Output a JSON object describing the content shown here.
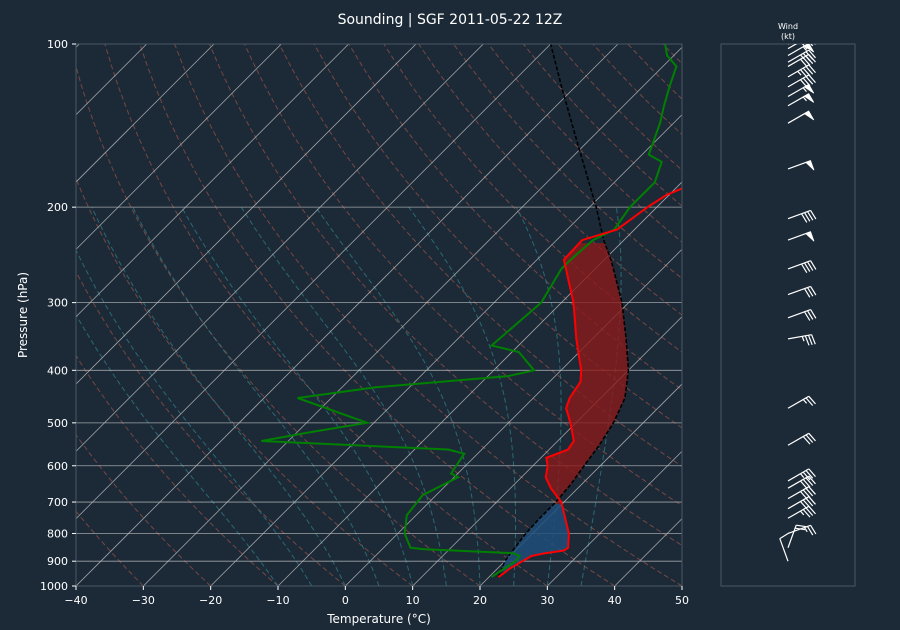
{
  "chart_data": {
    "type": "line",
    "title": "Sounding | SGF 2011-05-22 12Z",
    "xlabel": "Temperature (°C)",
    "ylabel": "Pressure (hPa)",
    "xlim": [
      -40,
      50
    ],
    "ylim": [
      1000,
      100
    ],
    "y_scale": "log",
    "skew": "skew-T",
    "x_ticks": [
      -40,
      -30,
      -20,
      -10,
      0,
      10,
      20,
      30,
      40,
      50
    ],
    "y_ticks": [
      100,
      200,
      300,
      400,
      500,
      600,
      700,
      800,
      900,
      1000
    ],
    "grid": true,
    "colors": {
      "background": "#1c2a38",
      "temperature": "#ff0000",
      "dewpoint": "#008000",
      "parcel": "#000000",
      "cape": "#8b1a1a",
      "cin": "#1f4e79",
      "dry_adiabat": "#b45a4a",
      "moist_adiabat": "#2f7f86",
      "isotherm": "#c0c0c0",
      "barb": "#ffffff"
    },
    "series": [
      {
        "name": "",
        "role": "temperature",
        "points": [
          {
            "p": 963,
            "t": 21.4
          },
          {
            "p": 950,
            "t": 21.6
          },
          {
            "p": 930,
            "t": 21.8
          },
          {
            "p": 900,
            "t": 22.6
          },
          {
            "p": 880,
            "t": 23.2
          },
          {
            "p": 870,
            "t": 24.8
          },
          {
            "p": 860,
            "t": 27.2
          },
          {
            "p": 850,
            "t": 27.4
          },
          {
            "p": 800,
            "t": 25.4
          },
          {
            "p": 750,
            "t": 22.6
          },
          {
            "p": 700,
            "t": 19.6
          },
          {
            "p": 660,
            "t": 16.0
          },
          {
            "p": 630,
            "t": 13.6
          },
          {
            "p": 600,
            "t": 12.2
          },
          {
            "p": 580,
            "t": 10.8
          },
          {
            "p": 560,
            "t": 12.8
          },
          {
            "p": 540,
            "t": 12.4
          },
          {
            "p": 500,
            "t": 9.2
          },
          {
            "p": 470,
            "t": 6.4
          },
          {
            "p": 450,
            "t": 5.4
          },
          {
            "p": 420,
            "t": 4.6
          },
          {
            "p": 400,
            "t": 3.0
          },
          {
            "p": 350,
            "t": -2.4
          },
          {
            "p": 300,
            "t": -8.2
          },
          {
            "p": 250,
            "t": -16.0
          },
          {
            "p": 230,
            "t": -16.2
          },
          {
            "p": 220,
            "t": -12.6
          },
          {
            "p": 200,
            "t": -11.4
          },
          {
            "p": 190,
            "t": -10.4
          },
          {
            "p": 180,
            "t": -7.8
          },
          {
            "p": 165,
            "t": -5.6
          },
          {
            "p": 155,
            "t": -6.2
          },
          {
            "p": 140,
            "t": -7.4
          },
          {
            "p": 130,
            "t": -10.0
          },
          {
            "p": 115,
            "t": -10.0
          },
          {
            "p": 105,
            "t": -11.0
          },
          {
            "p": 100,
            "t": -10.2
          }
        ]
      },
      {
        "name": "",
        "role": "dewpoint",
        "points": [
          {
            "p": 963,
            "t": 20.4
          },
          {
            "p": 950,
            "t": 20.6
          },
          {
            "p": 930,
            "t": 21.0
          },
          {
            "p": 900,
            "t": 21.6
          },
          {
            "p": 880,
            "t": 21.4
          },
          {
            "p": 870,
            "t": 20.0
          },
          {
            "p": 855,
            "t": 6.0
          },
          {
            "p": 850,
            "t": 4.0
          },
          {
            "p": 800,
            "t": 1.0
          },
          {
            "p": 740,
            "t": -1.4
          },
          {
            "p": 720,
            "t": -1.6
          },
          {
            "p": 680,
            "t": -2.0
          },
          {
            "p": 630,
            "t": 0.6
          },
          {
            "p": 620,
            "t": -1.0
          },
          {
            "p": 570,
            "t": -2.0
          },
          {
            "p": 560,
            "t": -5.0
          },
          {
            "p": 540,
            "t": -34.0
          },
          {
            "p": 520,
            "t": -28.0
          },
          {
            "p": 500,
            "t": -21.0
          },
          {
            "p": 450,
            "t": -35.0
          },
          {
            "p": 430,
            "t": -25.0
          },
          {
            "p": 410,
            "t": -7.0
          },
          {
            "p": 400,
            "t": -4.0
          },
          {
            "p": 370,
            "t": -9.0
          },
          {
            "p": 360,
            "t": -14.0
          },
          {
            "p": 300,
            "t": -13.0
          },
          {
            "p": 260,
            "t": -15.0
          },
          {
            "p": 250,
            "t": -15.0
          },
          {
            "p": 230,
            "t": -14.6
          },
          {
            "p": 220,
            "t": -13.0
          },
          {
            "p": 200,
            "t": -14.0
          },
          {
            "p": 180,
            "t": -14.0
          },
          {
            "p": 165,
            "t": -16.0
          },
          {
            "p": 160,
            "t": -19.0
          },
          {
            "p": 140,
            "t": -22.0
          },
          {
            "p": 130,
            "t": -24.0
          },
          {
            "p": 120,
            "t": -26.0
          },
          {
            "p": 110,
            "t": -28.0
          },
          {
            "p": 105,
            "t": -31.0
          },
          {
            "p": 100,
            "t": -33.0
          }
        ]
      },
      {
        "name": "",
        "role": "parcel",
        "points": [
          {
            "p": 963,
            "t": 21.4
          },
          {
            "p": 900,
            "t": 20.0
          },
          {
            "p": 850,
            "t": 19.5
          },
          {
            "p": 800,
            "t": 19.0
          },
          {
            "p": 750,
            "t": 18.8
          },
          {
            "p": 700,
            "t": 18.8
          },
          {
            "p": 650,
            "t": 18.4
          },
          {
            "p": 600,
            "t": 17.6
          },
          {
            "p": 550,
            "t": 16.8
          },
          {
            "p": 500,
            "t": 15.6
          },
          {
            "p": 450,
            "t": 13.6
          },
          {
            "p": 400,
            "t": 10.0
          },
          {
            "p": 350,
            "t": 5.0
          },
          {
            "p": 300,
            "t": -1.0
          },
          {
            "p": 250,
            "t": -9.0
          },
          {
            "p": 230,
            "t": -13.0
          },
          {
            "p": 200,
            "t": -19.0
          },
          {
            "p": 150,
            "t": -32.0
          },
          {
            "p": 120,
            "t": -42.0
          },
          {
            "p": 100,
            "t": -50.0
          }
        ]
      }
    ],
    "wind_title": "Wind",
    "wind_units": "(kt)",
    "wind_barbs": [
      {
        "p": 900,
        "dir": 340,
        "spd": 10
      },
      {
        "p": 850,
        "dir": 20,
        "spd": 20
      },
      {
        "p": 800,
        "dir": 70,
        "spd": 25
      },
      {
        "p": 750,
        "dir": 60,
        "spd": 35
      },
      {
        "p": 720,
        "dir": 60,
        "spd": 40
      },
      {
        "p": 690,
        "dir": 60,
        "spd": 40
      },
      {
        "p": 660,
        "dir": 60,
        "spd": 40
      },
      {
        "p": 640,
        "dir": 60,
        "spd": 35
      },
      {
        "p": 550,
        "dir": 60,
        "spd": 30
      },
      {
        "p": 470,
        "dir": 60,
        "spd": 25
      },
      {
        "p": 350,
        "dir": 80,
        "spd": 35
      },
      {
        "p": 320,
        "dir": 70,
        "spd": 30
      },
      {
        "p": 290,
        "dir": 70,
        "spd": 30
      },
      {
        "p": 260,
        "dir": 70,
        "spd": 40
      },
      {
        "p": 230,
        "dir": 70,
        "spd": 50
      },
      {
        "p": 210,
        "dir": 70,
        "spd": 40
      },
      {
        "p": 170,
        "dir": 70,
        "spd": 50
      },
      {
        "p": 140,
        "dir": 60,
        "spd": 50
      },
      {
        "p": 130,
        "dir": 60,
        "spd": 55
      },
      {
        "p": 125,
        "dir": 60,
        "spd": 55
      },
      {
        "p": 120,
        "dir": 60,
        "spd": 40
      },
      {
        "p": 115,
        "dir": 60,
        "spd": 45
      },
      {
        "p": 110,
        "dir": 60,
        "spd": 40
      },
      {
        "p": 108,
        "dir": 60,
        "spd": 35
      },
      {
        "p": 105,
        "dir": 60,
        "spd": 55
      },
      {
        "p": 102,
        "dir": 60,
        "spd": 40
      },
      {
        "p": 100,
        "dir": 60,
        "spd": 20
      }
    ]
  }
}
